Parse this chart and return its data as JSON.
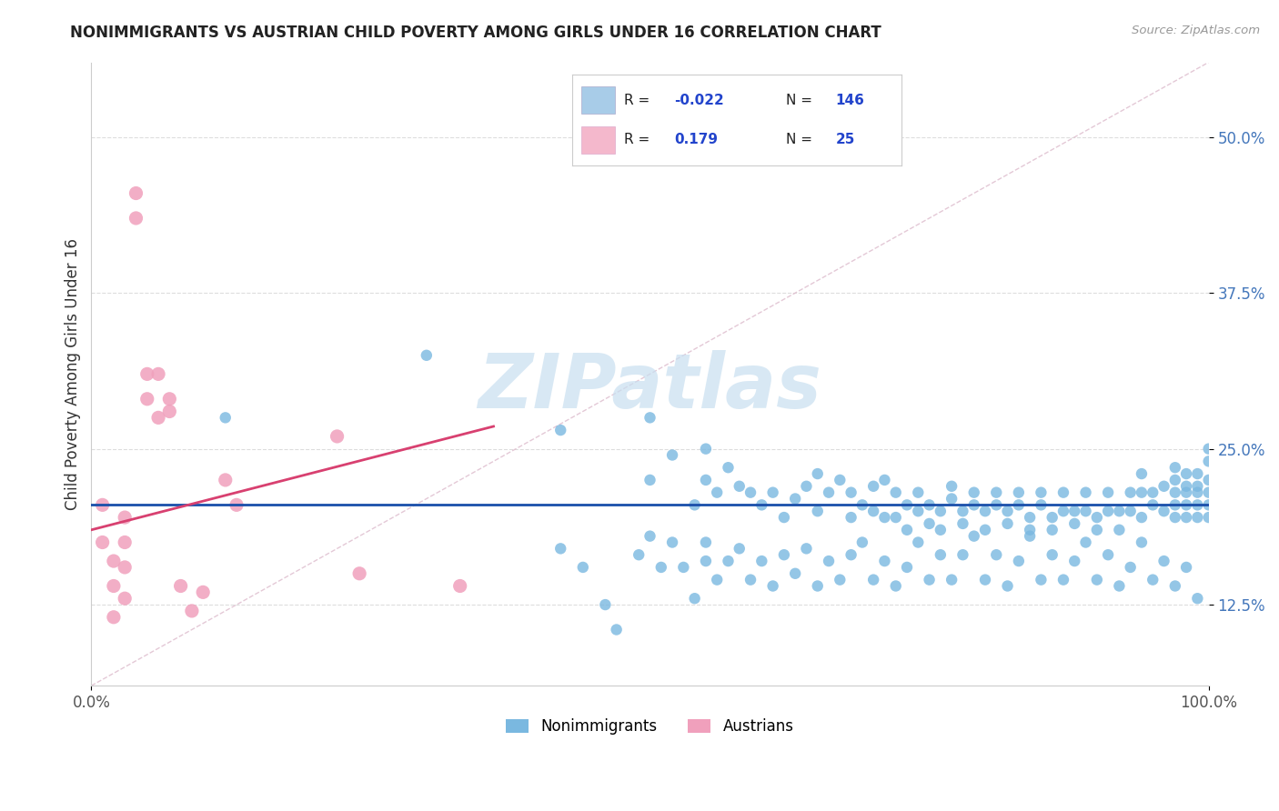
{
  "title": "NONIMMIGRANTS VS AUSTRIAN CHILD POVERTY AMONG GIRLS UNDER 16 CORRELATION CHART",
  "source": "Source: ZipAtlas.com",
  "ylabel": "Child Poverty Among Girls Under 16",
  "xmin": 0.0,
  "xmax": 1.0,
  "ymin": 0.06,
  "ymax": 0.56,
  "yticks": [
    0.125,
    0.25,
    0.375,
    0.5
  ],
  "ytick_labels": [
    "12.5%",
    "25.0%",
    "37.5%",
    "50.0%"
  ],
  "xtick_labels": [
    "0.0%",
    "100.0%"
  ],
  "nonimmigrant_color": "#7ab8e0",
  "austrian_color": "#f0a0bc",
  "trend_blue_color": "#1a4faa",
  "trend_pink_color": "#d84070",
  "ref_line_color": "#ddbbcc",
  "watermark_text": "ZIPatlas",
  "watermark_color": "#c8dff0",
  "legend_blue_color": "#a8cce8",
  "legend_pink_color": "#f4b8cc",
  "blue_trend_y0": 0.205,
  "blue_trend_y1": 0.205,
  "pink_trend_x0": 0.0,
  "pink_trend_y0": 0.185,
  "pink_trend_x1": 0.36,
  "pink_trend_y1": 0.268,
  "blue_dots": [
    [
      0.12,
      0.275
    ],
    [
      0.3,
      0.325
    ],
    [
      0.42,
      0.265
    ],
    [
      0.5,
      0.275
    ],
    [
      0.5,
      0.225
    ],
    [
      0.52,
      0.245
    ],
    [
      0.54,
      0.205
    ],
    [
      0.55,
      0.225
    ],
    [
      0.55,
      0.25
    ],
    [
      0.56,
      0.215
    ],
    [
      0.57,
      0.235
    ],
    [
      0.58,
      0.22
    ],
    [
      0.59,
      0.215
    ],
    [
      0.6,
      0.205
    ],
    [
      0.61,
      0.215
    ],
    [
      0.62,
      0.195
    ],
    [
      0.63,
      0.21
    ],
    [
      0.64,
      0.22
    ],
    [
      0.65,
      0.2
    ],
    [
      0.65,
      0.23
    ],
    [
      0.66,
      0.215
    ],
    [
      0.67,
      0.225
    ],
    [
      0.68,
      0.195
    ],
    [
      0.68,
      0.215
    ],
    [
      0.69,
      0.205
    ],
    [
      0.7,
      0.22
    ],
    [
      0.7,
      0.2
    ],
    [
      0.71,
      0.195
    ],
    [
      0.71,
      0.225
    ],
    [
      0.72,
      0.215
    ],
    [
      0.72,
      0.195
    ],
    [
      0.73,
      0.205
    ],
    [
      0.73,
      0.185
    ],
    [
      0.74,
      0.2
    ],
    [
      0.74,
      0.215
    ],
    [
      0.75,
      0.205
    ],
    [
      0.75,
      0.19
    ],
    [
      0.76,
      0.2
    ],
    [
      0.76,
      0.185
    ],
    [
      0.77,
      0.21
    ],
    [
      0.77,
      0.22
    ],
    [
      0.78,
      0.2
    ],
    [
      0.78,
      0.19
    ],
    [
      0.79,
      0.205
    ],
    [
      0.79,
      0.215
    ],
    [
      0.8,
      0.2
    ],
    [
      0.8,
      0.185
    ],
    [
      0.81,
      0.205
    ],
    [
      0.81,
      0.215
    ],
    [
      0.82,
      0.2
    ],
    [
      0.82,
      0.19
    ],
    [
      0.83,
      0.205
    ],
    [
      0.83,
      0.215
    ],
    [
      0.84,
      0.195
    ],
    [
      0.84,
      0.185
    ],
    [
      0.85,
      0.205
    ],
    [
      0.85,
      0.215
    ],
    [
      0.86,
      0.195
    ],
    [
      0.86,
      0.185
    ],
    [
      0.87,
      0.2
    ],
    [
      0.87,
      0.215
    ],
    [
      0.88,
      0.2
    ],
    [
      0.88,
      0.19
    ],
    [
      0.89,
      0.2
    ],
    [
      0.89,
      0.215
    ],
    [
      0.9,
      0.195
    ],
    [
      0.9,
      0.185
    ],
    [
      0.91,
      0.2
    ],
    [
      0.91,
      0.215
    ],
    [
      0.92,
      0.2
    ],
    [
      0.92,
      0.185
    ],
    [
      0.93,
      0.2
    ],
    [
      0.93,
      0.215
    ],
    [
      0.94,
      0.195
    ],
    [
      0.94,
      0.215
    ],
    [
      0.94,
      0.23
    ],
    [
      0.95,
      0.205
    ],
    [
      0.95,
      0.215
    ],
    [
      0.96,
      0.2
    ],
    [
      0.96,
      0.22
    ],
    [
      0.97,
      0.205
    ],
    [
      0.97,
      0.215
    ],
    [
      0.97,
      0.225
    ],
    [
      0.97,
      0.235
    ],
    [
      0.97,
      0.195
    ],
    [
      0.98,
      0.215
    ],
    [
      0.98,
      0.23
    ],
    [
      0.98,
      0.22
    ],
    [
      0.98,
      0.205
    ],
    [
      0.98,
      0.195
    ],
    [
      0.99,
      0.215
    ],
    [
      0.99,
      0.23
    ],
    [
      0.99,
      0.22
    ],
    [
      0.99,
      0.205
    ],
    [
      0.99,
      0.195
    ],
    [
      1.0,
      0.215
    ],
    [
      1.0,
      0.24
    ],
    [
      1.0,
      0.225
    ],
    [
      1.0,
      0.205
    ],
    [
      1.0,
      0.195
    ],
    [
      1.0,
      0.25
    ],
    [
      0.42,
      0.17
    ],
    [
      0.44,
      0.155
    ],
    [
      0.46,
      0.125
    ],
    [
      0.47,
      0.105
    ],
    [
      0.49,
      0.165
    ],
    [
      0.5,
      0.18
    ],
    [
      0.51,
      0.155
    ],
    [
      0.52,
      0.175
    ],
    [
      0.53,
      0.155
    ],
    [
      0.54,
      0.13
    ],
    [
      0.55,
      0.16
    ],
    [
      0.55,
      0.175
    ],
    [
      0.56,
      0.145
    ],
    [
      0.57,
      0.16
    ],
    [
      0.58,
      0.17
    ],
    [
      0.59,
      0.145
    ],
    [
      0.6,
      0.16
    ],
    [
      0.61,
      0.14
    ],
    [
      0.62,
      0.165
    ],
    [
      0.63,
      0.15
    ],
    [
      0.64,
      0.17
    ],
    [
      0.65,
      0.14
    ],
    [
      0.66,
      0.16
    ],
    [
      0.67,
      0.145
    ],
    [
      0.68,
      0.165
    ],
    [
      0.69,
      0.175
    ],
    [
      0.7,
      0.145
    ],
    [
      0.71,
      0.16
    ],
    [
      0.72,
      0.14
    ],
    [
      0.73,
      0.155
    ],
    [
      0.74,
      0.175
    ],
    [
      0.75,
      0.145
    ],
    [
      0.76,
      0.165
    ],
    [
      0.77,
      0.145
    ],
    [
      0.78,
      0.165
    ],
    [
      0.79,
      0.18
    ],
    [
      0.8,
      0.145
    ],
    [
      0.81,
      0.165
    ],
    [
      0.82,
      0.14
    ],
    [
      0.83,
      0.16
    ],
    [
      0.84,
      0.18
    ],
    [
      0.85,
      0.145
    ],
    [
      0.86,
      0.165
    ],
    [
      0.87,
      0.145
    ],
    [
      0.88,
      0.16
    ],
    [
      0.89,
      0.175
    ],
    [
      0.9,
      0.145
    ],
    [
      0.91,
      0.165
    ],
    [
      0.92,
      0.14
    ],
    [
      0.93,
      0.155
    ],
    [
      0.94,
      0.175
    ],
    [
      0.95,
      0.145
    ],
    [
      0.96,
      0.16
    ],
    [
      0.97,
      0.14
    ],
    [
      0.98,
      0.155
    ],
    [
      0.99,
      0.13
    ]
  ],
  "pink_dots": [
    [
      0.01,
      0.205
    ],
    [
      0.01,
      0.175
    ],
    [
      0.02,
      0.16
    ],
    [
      0.02,
      0.14
    ],
    [
      0.02,
      0.115
    ],
    [
      0.03,
      0.195
    ],
    [
      0.03,
      0.175
    ],
    [
      0.03,
      0.155
    ],
    [
      0.03,
      0.13
    ],
    [
      0.04,
      0.455
    ],
    [
      0.04,
      0.435
    ],
    [
      0.05,
      0.31
    ],
    [
      0.05,
      0.29
    ],
    [
      0.06,
      0.275
    ],
    [
      0.06,
      0.31
    ],
    [
      0.07,
      0.29
    ],
    [
      0.07,
      0.28
    ],
    [
      0.08,
      0.14
    ],
    [
      0.09,
      0.12
    ],
    [
      0.1,
      0.135
    ],
    [
      0.12,
      0.225
    ],
    [
      0.13,
      0.205
    ],
    [
      0.22,
      0.26
    ],
    [
      0.24,
      0.15
    ],
    [
      0.33,
      0.14
    ]
  ]
}
